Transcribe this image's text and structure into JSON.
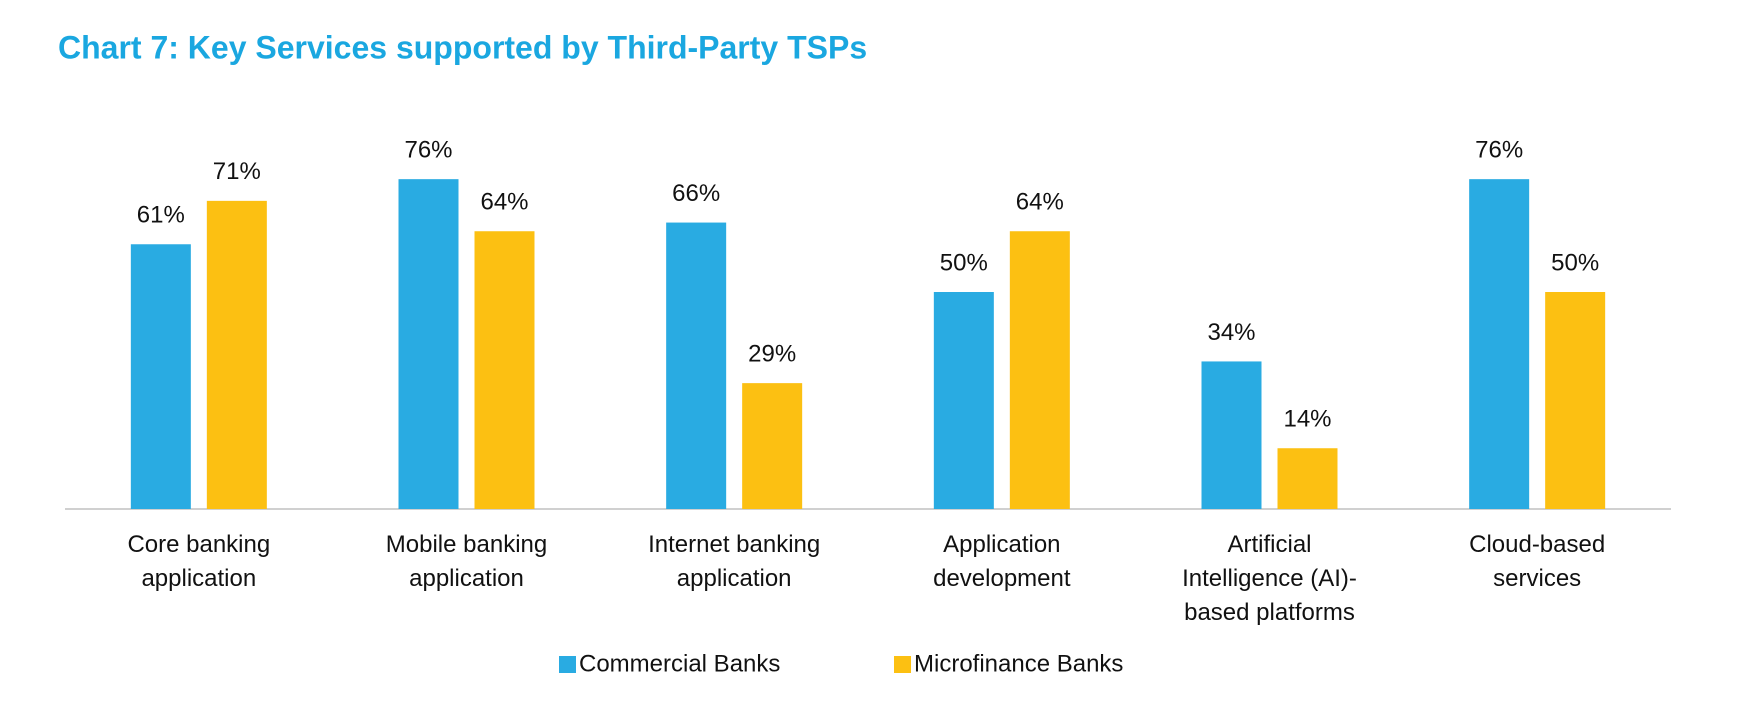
{
  "chart_data": {
    "type": "bar",
    "title": "Chart 7: Key Services supported by Third-Party TSPs",
    "categories": [
      "Core banking\napplication",
      "Mobile banking\napplication",
      "Internet banking\napplication",
      "Application\ndevelopment",
      "Artificial\nIntelligence (AI)-\nbased platforms",
      "Cloud-based\nservices"
    ],
    "series": [
      {
        "name": "Commercial Banks",
        "color": "#29abe2",
        "values": [
          61,
          76,
          66,
          50,
          34,
          76
        ],
        "value_labels": [
          "61%",
          "76%",
          "66%",
          "50%",
          "34%",
          "76%"
        ]
      },
      {
        "name": "Microfinance Banks",
        "color": "#fcc012",
        "values": [
          71,
          64,
          29,
          64,
          14,
          50
        ],
        "value_labels": [
          "71%",
          "64%",
          "29%",
          "64%",
          "14%",
          "50%"
        ]
      }
    ],
    "ylim": [
      0,
      100
    ],
    "legend": "bottom"
  }
}
